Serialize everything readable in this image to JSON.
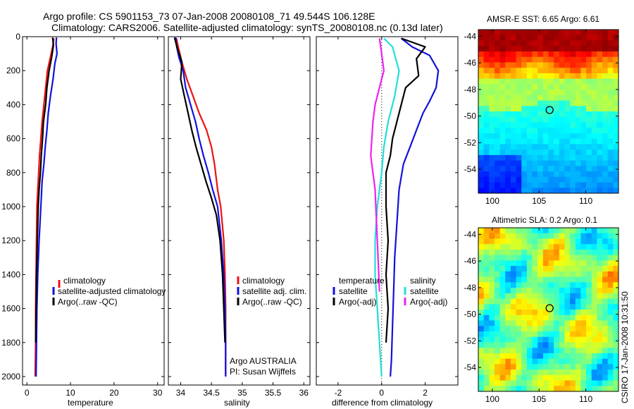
{
  "title": {
    "line1": "Argo profile: CS 5901153_73 07-Jan-2008 20080108_71 49.544S 106.128E",
    "line2": "Climatology: CARS2006. Satellite-adjusted climatology: synTS_20080108.nc (0.13d later)"
  },
  "credit": "CSIRO 17-Jan-2008 10:31:50",
  "colors": {
    "climatology": "#ee1111",
    "satellite": "#1111dd",
    "argo": "#000000",
    "sal_satellite": "#22dddd",
    "sal_argo": "#ee22ee"
  },
  "chart_data": [
    {
      "type": "line",
      "xlabel": "temperature",
      "ylabel": "",
      "xlim": [
        -1,
        31.5
      ],
      "ylim": [
        2050,
        0
      ],
      "y_inverted": true,
      "xticks": [
        0,
        10,
        20,
        30
      ],
      "yticks": [
        0,
        200,
        400,
        600,
        800,
        1000,
        1200,
        1400,
        1600,
        1800,
        2000
      ],
      "legend": [
        "climatology",
        "satellite-adjusted climatology",
        "Argo(..raw -QC)"
      ],
      "legend_position": "lower-right",
      "series": [
        {
          "name": "climatology",
          "color": "#ee1111",
          "x": [
            6.2,
            5.9,
            5.4,
            4.7,
            4.3,
            3.9,
            3.5,
            3.2,
            2.9,
            2.7,
            2.5,
            2.3,
            2.2,
            2.1,
            2.0,
            2.0,
            1.9
          ],
          "y": [
            10,
            60,
            120,
            200,
            300,
            400,
            500,
            600,
            700,
            800,
            900,
            1000,
            1200,
            1400,
            1600,
            1800,
            2000
          ]
        },
        {
          "name": "satellite-adjusted climatology",
          "color": "#1111dd",
          "x": [
            6.8,
            6.7,
            6.9,
            6.4,
            6.0,
            5.4,
            4.9,
            4.6,
            4.2,
            3.9,
            3.5,
            3.2,
            2.8,
            2.5,
            2.3,
            2.2,
            2.1
          ],
          "y": [
            5,
            40,
            100,
            160,
            250,
            350,
            450,
            550,
            650,
            750,
            850,
            1000,
            1200,
            1400,
            1600,
            1800,
            2000
          ]
        },
        {
          "name": "Argo(..raw -QC)",
          "color": "#000000",
          "x": [
            5.9,
            6.1,
            5.7,
            5.1,
            4.6,
            4.3,
            3.8,
            3.6,
            3.3,
            3.1,
            2.8,
            2.6,
            2.4,
            2.2,
            2.1,
            2.0
          ],
          "y": [
            5,
            50,
            120,
            200,
            300,
            400,
            500,
            600,
            700,
            800,
            900,
            1000,
            1200,
            1400,
            1600,
            1800
          ]
        }
      ]
    },
    {
      "type": "line",
      "xlabel": "salinity",
      "ylabel": "",
      "xlim": [
        33.8,
        36.1
      ],
      "ylim": [
        2050,
        0
      ],
      "y_inverted": true,
      "xticks": [
        34,
        34.5,
        35,
        35.5,
        36
      ],
      "xticklabels": [
        "34",
        "34.5",
        "35",
        "35.5",
        "36"
      ],
      "legend": [
        "climatology",
        "satellite adj. clim.",
        "Argo(..raw -QC)"
      ],
      "legend_position": "lower-right",
      "annotation": [
        "Argo AUSTRALIA",
        "PI: Susan Wijffels"
      ],
      "series": [
        {
          "name": "climatology",
          "color": "#ee1111",
          "x": [
            33.93,
            33.96,
            34.02,
            34.1,
            34.2,
            34.3,
            34.42,
            34.5,
            34.55,
            34.6,
            34.65,
            34.7,
            34.72,
            34.73,
            34.73,
            34.73
          ],
          "y": [
            10,
            60,
            150,
            250,
            350,
            450,
            550,
            650,
            750,
            900,
            1000,
            1200,
            1400,
            1600,
            1800,
            2000
          ]
        },
        {
          "name": "satellite adj. clim.",
          "color": "#1111dd",
          "x": [
            33.92,
            33.93,
            33.97,
            34.04,
            34.08,
            34.16,
            34.24,
            34.3,
            34.37,
            34.45,
            34.52,
            34.6,
            34.66,
            34.7,
            34.72,
            34.73,
            34.73
          ],
          "y": [
            5,
            50,
            120,
            200,
            300,
            400,
            500,
            600,
            700,
            800,
            900,
            1000,
            1200,
            1400,
            1600,
            1800,
            2000
          ]
        },
        {
          "name": "Argo(..raw -QC)",
          "color": "#000000",
          "x": [
            33.9,
            33.94,
            34.02,
            34.0,
            34.06,
            34.12,
            34.18,
            34.25,
            34.33,
            34.41,
            34.5,
            34.58,
            34.64,
            34.68,
            34.7,
            34.72
          ],
          "y": [
            5,
            60,
            150,
            250,
            350,
            450,
            550,
            650,
            750,
            850,
            950,
            1050,
            1200,
            1400,
            1600,
            1800
          ]
        }
      ]
    },
    {
      "type": "line",
      "xlabel": "difference from climatology",
      "ylabel": "",
      "xlim": [
        -3,
        3.5
      ],
      "ylim": [
        2050,
        0
      ],
      "y_inverted": true,
      "xticks": [
        -2,
        0,
        2
      ],
      "reference_line_x": 0,
      "legend": [
        "temperature",
        "satellite",
        "Argo(-adj)",
        "salinity",
        "satellite",
        "Argo(-adj)"
      ],
      "legend_position": "lower-center",
      "series": [
        {
          "name": "satellite",
          "color": "#1111dd",
          "x": [
            0.9,
            1.4,
            2.2,
            2.6,
            2.5,
            2.2,
            1.9,
            1.6,
            1.3,
            1.0,
            0.8,
            0.7,
            0.6,
            0.55,
            0.5,
            0.45,
            0.4
          ],
          "y": [
            10,
            60,
            110,
            200,
            300,
            380,
            450,
            550,
            650,
            750,
            900,
            1100,
            1300,
            1500,
            1700,
            1900,
            2000
          ]
        },
        {
          "name": "Argo(-adj)",
          "color": "#000000",
          "x": [
            0.9,
            2.0,
            1.6,
            1.7,
            1.1,
            0.9,
            0.7,
            0.5,
            0.4,
            0.2,
            0.2,
            0.3,
            0.2,
            0.3,
            0.2
          ],
          "y": [
            10,
            60,
            130,
            230,
            300,
            400,
            500,
            600,
            700,
            800,
            1000,
            1200,
            1400,
            1600,
            1800
          ]
        },
        {
          "name": "satellite",
          "color": "#22dddd",
          "x": [
            0.1,
            0.5,
            0.8,
            0.6,
            0.3,
            0.1,
            0.0,
            -0.2,
            -0.3,
            -0.3,
            -0.2,
            -0.15,
            -0.1,
            -0.05,
            0.0
          ],
          "y": [
            10,
            60,
            200,
            350,
            500,
            650,
            800,
            1000,
            1200,
            1400,
            1600,
            1700,
            1800,
            1900,
            2000
          ]
        },
        {
          "name": "Argo(-adj)",
          "color": "#ee22ee",
          "x": [
            -0.1,
            0.0,
            0.1,
            -0.1,
            -0.3,
            -0.4,
            -0.5,
            -0.3,
            -0.2,
            -0.1
          ],
          "y": [
            10,
            100,
            200,
            300,
            400,
            500,
            700,
            900,
            1200,
            1500
          ]
        }
      ]
    },
    {
      "type": "heatmap",
      "title": "AMSR-E SST: 6.65 Argo: 6.61",
      "xlim": [
        98.5,
        113.5
      ],
      "ylim": [
        -55.8,
        -43.5
      ],
      "xticks": [
        100,
        105,
        110
      ],
      "yticks": [
        -44,
        -46,
        -48,
        -50,
        -52,
        -54
      ],
      "marker": {
        "x": 106.128,
        "y": -49.544
      }
    },
    {
      "type": "heatmap",
      "title": "Altimetric SLA: 0.2 Argo: 0.1",
      "xlim": [
        98.5,
        113.5
      ],
      "ylim": [
        -55.8,
        -43.5
      ],
      "xticks": [
        100,
        105,
        110
      ],
      "yticks": [
        -44,
        -46,
        -48,
        -50,
        -52,
        -54
      ],
      "marker": {
        "x": 106.128,
        "y": -49.544
      }
    }
  ]
}
